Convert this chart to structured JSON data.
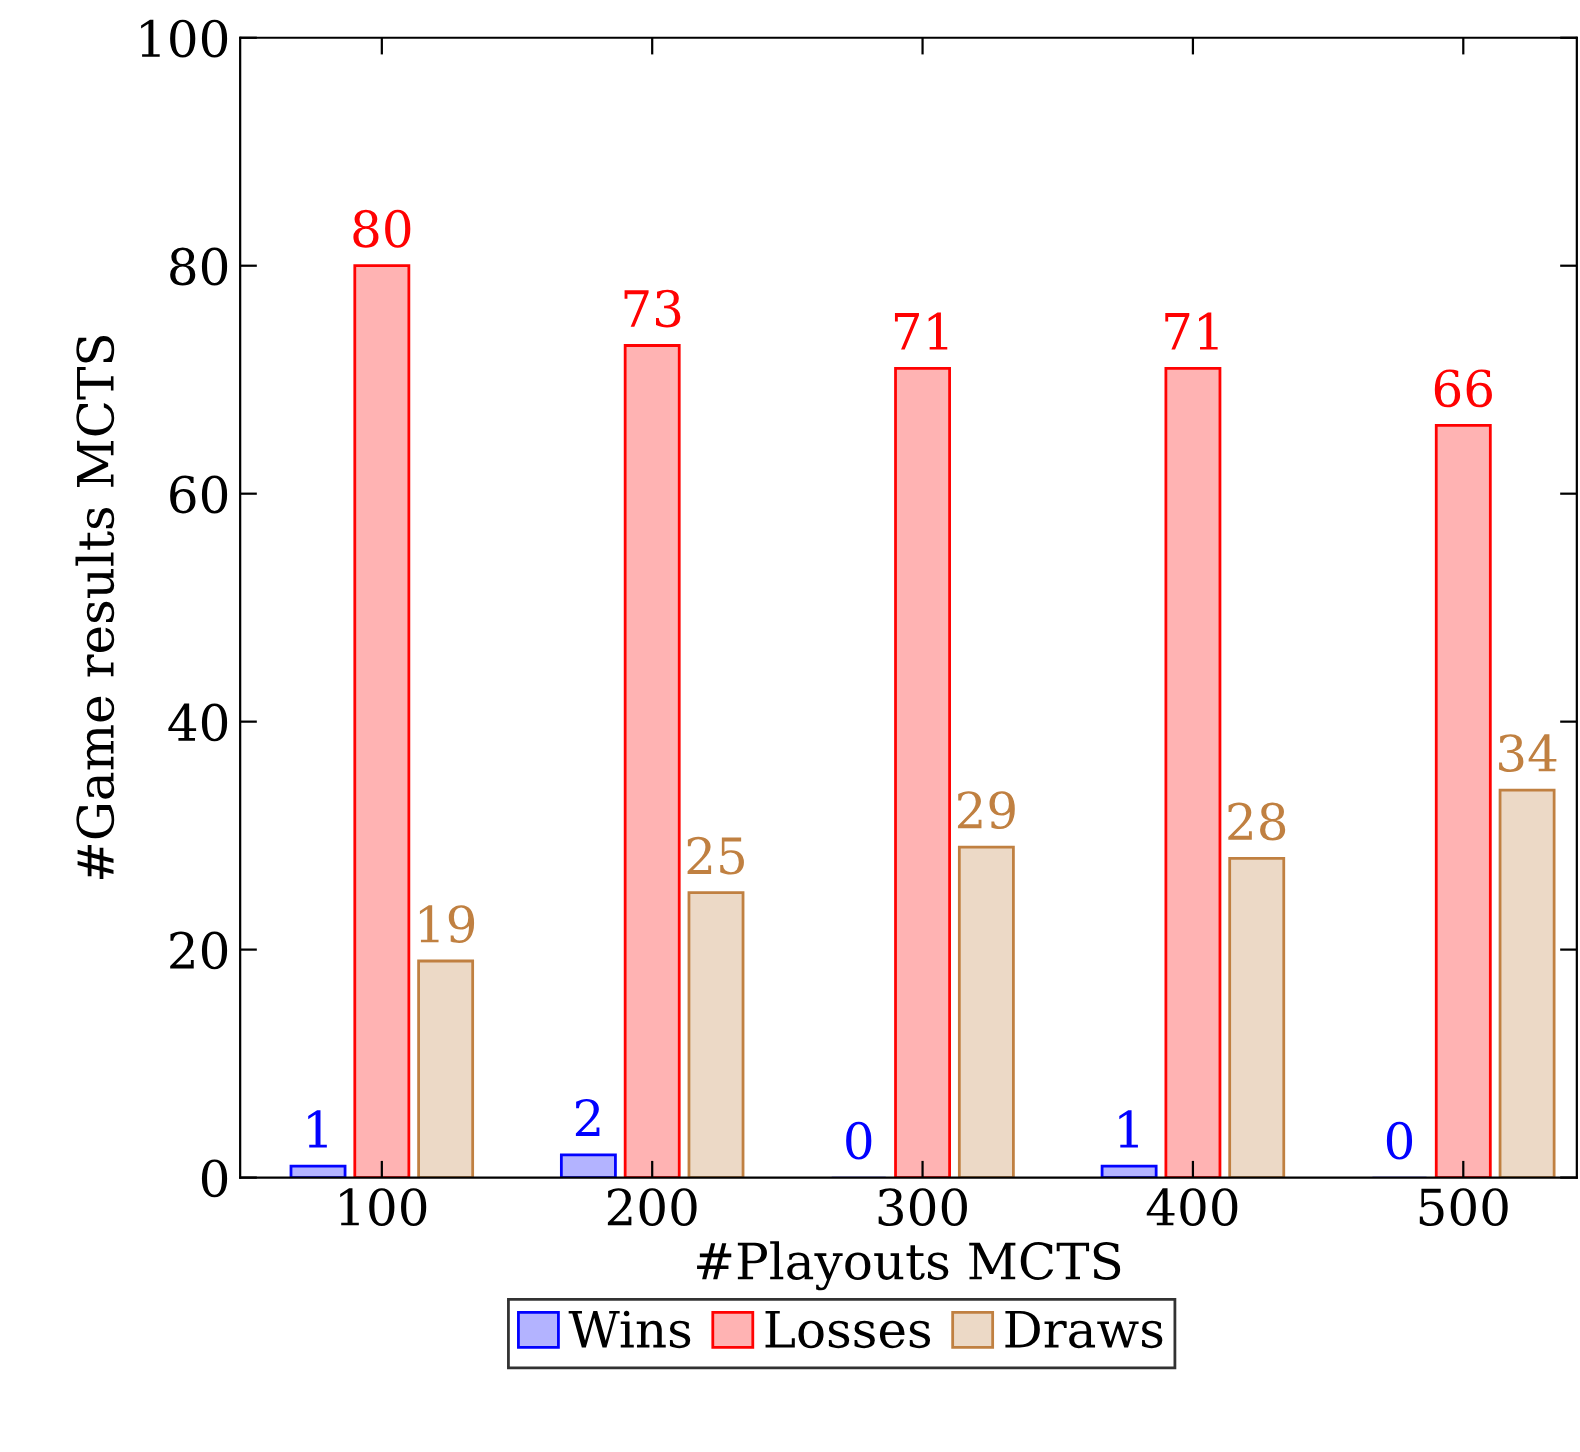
{
  "chart_data": {
    "type": "bar",
    "xlabel": "#Playouts MCTS",
    "ylabel": "#Game results MCTS",
    "categories": [
      "100",
      "200",
      "300",
      "400",
      "500"
    ],
    "series": [
      {
        "name": "Wins",
        "color": "#b3b3ff",
        "values": [
          1,
          2,
          0,
          1,
          0
        ]
      },
      {
        "name": "Losses",
        "color": "#ffb3b3",
        "values": [
          80,
          73,
          71,
          71,
          66
        ]
      },
      {
        "name": "Draws",
        "color": "#ecd9c6",
        "values": [
          19,
          25,
          29,
          28,
          34
        ]
      }
    ],
    "ylim": [
      0,
      100
    ],
    "yticks": [
      0,
      20,
      40,
      60,
      80,
      100
    ],
    "data_labels": true,
    "grid": false,
    "legend": "bottom"
  }
}
